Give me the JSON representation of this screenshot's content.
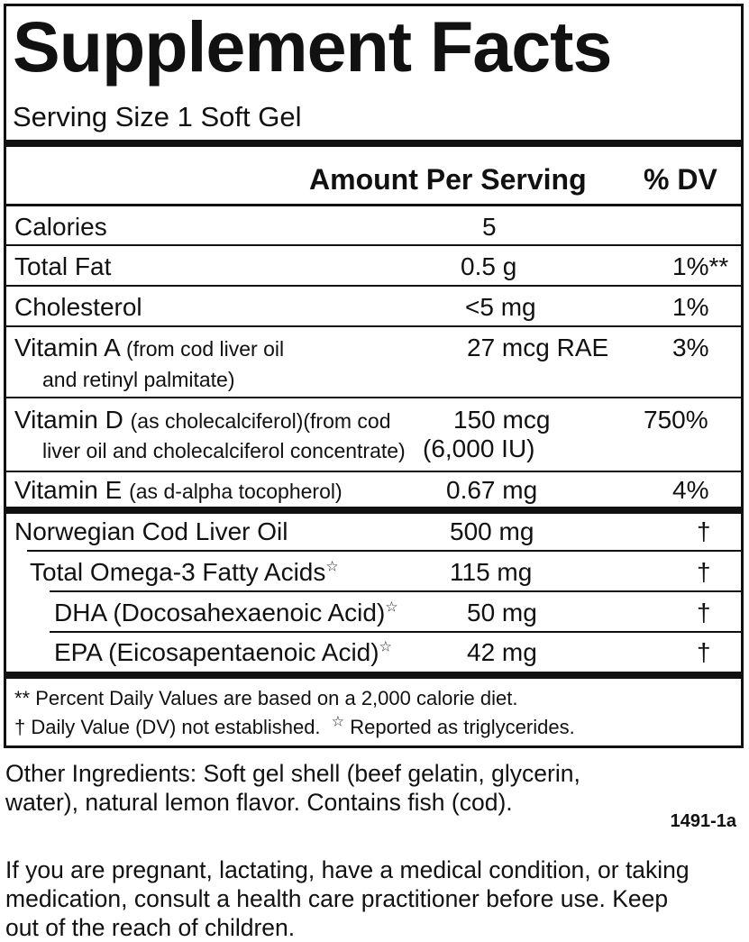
{
  "label": {
    "title": "Supplement Facts",
    "serving_size": "Serving Size 1 Soft Gel",
    "col_amount": "Amount Per Serving",
    "col_dv": "% DV",
    "rows": [
      {
        "name": "Calories",
        "name_note": "",
        "name_line2": "",
        "amount": "5",
        "amount_line2": "",
        "dv": ""
      },
      {
        "name": "Total Fat",
        "name_note": "",
        "name_line2": "",
        "amount": "0.5 g",
        "amount_line2": "",
        "dv": "1%**"
      },
      {
        "name": "Cholesterol",
        "name_note": "",
        "name_line2": "",
        "amount": "<5 mg",
        "amount_line2": "",
        "dv": "1%"
      },
      {
        "name": "Vitamin A",
        "name_note": "(from cod liver oil",
        "name_line2": "and retinyl palmitate)",
        "amount": "27 mcg RAE",
        "amount_line2": "",
        "dv": "3%"
      },
      {
        "name": "Vitamin D",
        "name_note": "(as cholecalciferol)(from cod",
        "name_line2": "liver oil and cholecalciferol concentrate)",
        "amount": "150 mcg",
        "amount_line2": "(6,000 IU)",
        "dv": "750%"
      },
      {
        "name": "Vitamin E",
        "name_note": "(as d-alpha tocopherol)",
        "name_line2": "",
        "amount": "0.67 mg",
        "amount_line2": "",
        "dv": "4%"
      },
      {
        "name": "Norwegian Cod Liver Oil",
        "name_note": "",
        "name_line2": "",
        "amount": "500 mg",
        "amount_line2": "",
        "dv": "†"
      },
      {
        "name": "Total Omega-3 Fatty Acids",
        "name_note": "",
        "name_line2": "",
        "amount": "115 mg",
        "amount_line2": "",
        "dv": "†",
        "star": "☆"
      },
      {
        "name": "DHA (Docosahexaenoic Acid)",
        "name_note": "",
        "name_line2": "",
        "amount": "50 mg",
        "amount_line2": "",
        "dv": "†",
        "star": "☆"
      },
      {
        "name": "EPA (Eicosapentaenoic Acid)",
        "name_note": "",
        "name_line2": "",
        "amount": "42 mg",
        "amount_line2": "",
        "dv": "†",
        "star": "☆"
      }
    ],
    "footnote_1": "** Percent Daily Values are based on a 2,000 calorie diet.",
    "footnote_2a": "† Daily Value (DV) not established.",
    "footnote_2_star": "☆",
    "footnote_2b": "Reported as triglycerides."
  },
  "other_ingredients": {
    "line1": "Other Ingredients:  Soft gel shell (beef gelatin, glycerin,",
    "line2": "water), natural lemon flavor.  Contains fish (cod)."
  },
  "product_code": "1491-1a",
  "warning": {
    "line1": "If you are pregnant, lactating, have a medical condition, or taking",
    "line2": "medication, consult a health care practitioner before use. Keep",
    "line3": "out of the reach of children."
  }
}
